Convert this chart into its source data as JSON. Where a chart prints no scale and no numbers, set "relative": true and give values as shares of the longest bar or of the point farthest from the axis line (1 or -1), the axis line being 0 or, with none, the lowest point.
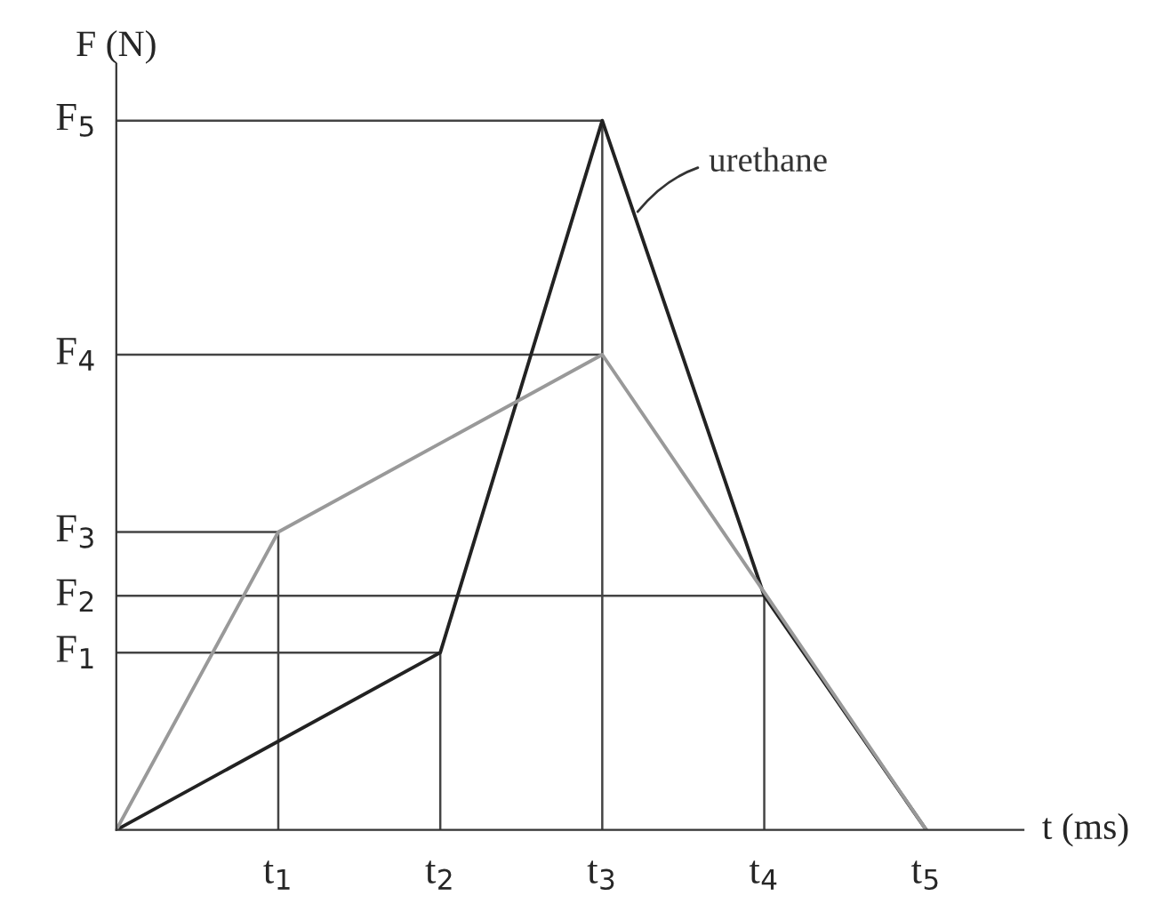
{
  "chart_data": {
    "type": "line",
    "xlabel": "t (ms)",
    "ylabel": "F (N)",
    "relative": true,
    "categories": [
      null,
      "t$_{1}$",
      "t$_{2}$",
      "t$_{3}$",
      "t$_{4}$",
      "t$_{5}$"
    ],
    "series": [
      {
        "name": "urethane",
        "color": "#222222",
        "values": [
          0,
          null,
          0.25,
          1,
          0.33,
          0
        ]
      },
      {
        "color": "#999999",
        "values": [
          0,
          0.42,
          null,
          0.67,
          null,
          0
        ]
      }
    ],
    "annotations": [
      {
        "text": "F$_{1}$",
        "x": "t$_{2}$",
        "y": 0.25
      },
      {
        "text": "F$_{2}$",
        "x": "t$_{4}$",
        "y": 0.33
      },
      {
        "text": "F$_{3}$",
        "x": "t$_{1}$",
        "y": 0.42
      },
      {
        "text": "F$_{4}$",
        "x": "t$_{3}$",
        "y": 0.67
      },
      {
        "text": "F$_{5}$",
        "x": "t$_{3}$",
        "y": 1
      }
    ],
    "ref_lines": [
      {
        "axis": "x",
        "value": "t$_{1}$",
        "color": "#444444"
      },
      {
        "axis": "x",
        "value": "t$_{2}$",
        "color": "#444444"
      },
      {
        "axis": "x",
        "value": "t$_{3}$",
        "color": "#444444"
      },
      {
        "axis": "x",
        "value": "t$_{4}$",
        "color": "#444444"
      }
    ],
    "legend": false,
    "marker": "none",
    "line_style": "solid"
  }
}
